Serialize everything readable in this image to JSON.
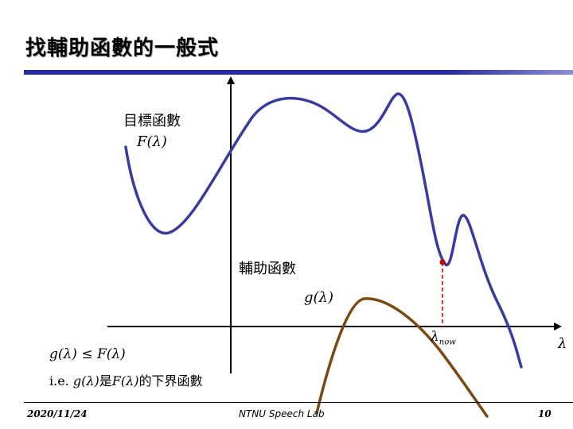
{
  "slide": {
    "title": "找輔助函數的一般式",
    "objective_label": "目標函數",
    "objective_symbol": "F(λ)",
    "auxiliary_label": "輔助函數",
    "auxiliary_symbol": "g(λ)",
    "lambda_now": "λ",
    "lambda_now_sub": "now",
    "axis_label": "λ",
    "inequality": "g(λ) ≤ F(λ)",
    "ie_prefix": "i.e. ",
    "ie_g": "g(λ)",
    "ie_is": "是",
    "ie_F": "F(λ)",
    "ie_suffix": "的下界函數"
  },
  "footer": {
    "date": "2020/11/24",
    "lab": "NTNU Speech Lab",
    "page": "10"
  },
  "colors": {
    "objective_curve": "#3a3aa0",
    "auxiliary_curve": "#7a4a10",
    "marker": "#cc0000",
    "title_bar": "#2a2f9e"
  }
}
